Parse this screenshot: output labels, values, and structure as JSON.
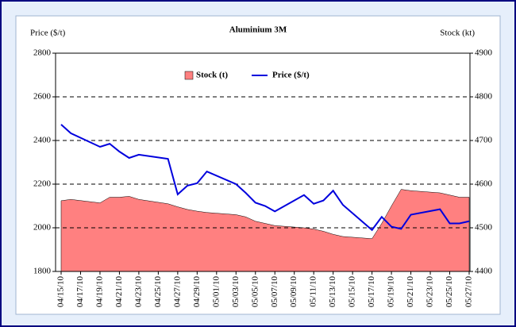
{
  "chart_data": {
    "type": "line-area",
    "title": "Aluminium 3M",
    "y_label": "Price ($/t)",
    "y2_label": "Stock (kt)",
    "x": [
      "04/15/10",
      "04/16/10",
      "04/19/10",
      "04/20/10",
      "04/21/10",
      "04/22/10",
      "04/23/10",
      "04/26/10",
      "04/27/10",
      "04/28/10",
      "04/29/10",
      "04/30/10",
      "05/03/10",
      "05/04/10",
      "05/05/10",
      "05/06/10",
      "05/07/10",
      "05/10/10",
      "05/11/10",
      "05/12/10",
      "05/13/10",
      "05/14/10",
      "05/17/10",
      "05/18/10",
      "05/19/10",
      "05/20/10",
      "05/21/10",
      "05/24/10",
      "05/25/10",
      "05/26/10",
      "05/27/10"
    ],
    "xticks": [
      "04/15/10",
      "04/17/10",
      "04/19/10",
      "04/21/10",
      "04/23/10",
      "04/25/10",
      "04/27/10",
      "04/29/10",
      "05/01/10",
      "05/03/10",
      "05/05/10",
      "05/07/10",
      "05/09/10",
      "05/11/10",
      "05/13/10",
      "05/15/10",
      "05/17/10",
      "05/19/10",
      "05/21/10",
      "05/23/10",
      "05/25/10",
      "05/27/10"
    ],
    "series": [
      {
        "name": "Stock (t)",
        "color": "#ff8080",
        "axis": "y2",
        "kind": "area",
        "values": [
          4562,
          4565,
          4557,
          4570,
          4570,
          4572,
          4565,
          4555,
          4548,
          4542,
          4538,
          4535,
          4530,
          4525,
          4515,
          4510,
          4505,
          4500,
          4497,
          4492,
          4485,
          4480,
          4475,
          4510,
          4550,
          4588,
          4585,
          4580,
          4575,
          4570,
          4570
        ]
      },
      {
        "name": "Price ($/t)",
        "color": "#0000dd",
        "axis": "y",
        "kind": "line",
        "values": [
          2473,
          2433,
          2371,
          2385,
          2349,
          2320,
          2335,
          2316,
          2153,
          2193,
          2204,
          2258,
          2200,
          2160,
          2115,
          2100,
          2075,
          2150,
          2110,
          2125,
          2170,
          2105,
          1990,
          2050,
          2005,
          1995,
          2060,
          2085,
          2020,
          2020,
          2030
        ]
      }
    ],
    "ylim": [
      1800,
      2800
    ],
    "yticks": [
      1800,
      2000,
      2200,
      2400,
      2600,
      2800
    ],
    "y2lim": [
      4400,
      4900
    ],
    "y2ticks": [
      4400,
      4500,
      4600,
      4700,
      4800,
      4900
    ],
    "grid": true
  }
}
